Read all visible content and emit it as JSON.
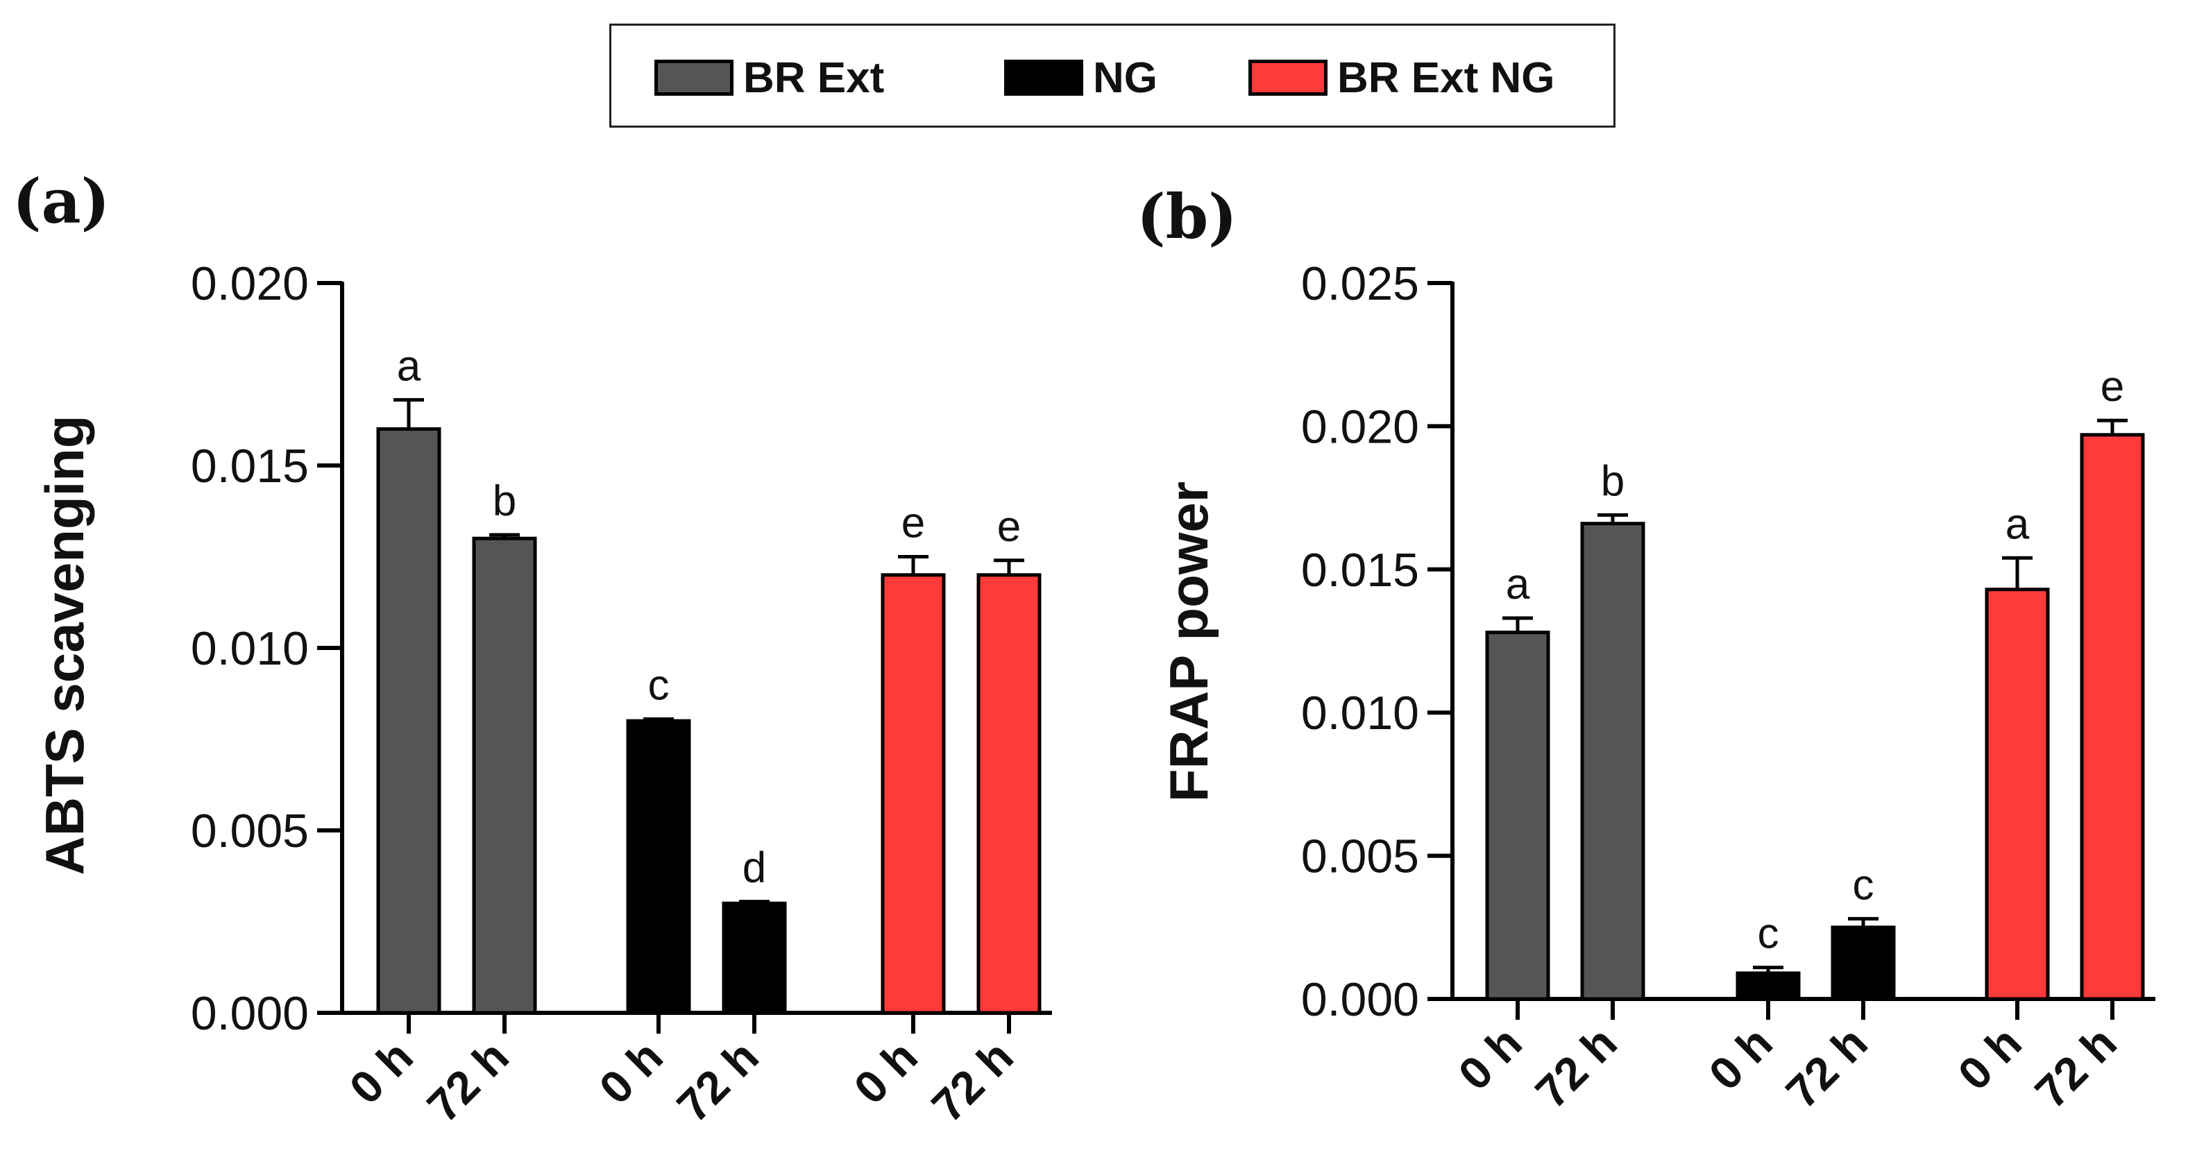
{
  "legend": {
    "items": [
      {
        "label": "BR Ext",
        "color": "#555555"
      },
      {
        "label": "NG",
        "color": "#000000"
      },
      {
        "label": "BR Ext NG",
        "color": "#ff3a3a"
      }
    ]
  },
  "panels": {
    "a": {
      "label": "(a)"
    },
    "b": {
      "label": "(b)"
    }
  },
  "chart_data": [
    {
      "type": "bar",
      "panel": "(a)",
      "ylabel": "ABTS scavenging",
      "xlabel": "",
      "ylim": [
        0,
        0.02
      ],
      "yticks": [
        "0.000",
        "0.005",
        "0.010",
        "0.015",
        "0.020"
      ],
      "categories": [
        "0 h",
        "72 h",
        "0 h",
        "72 h",
        "0 h",
        "72 h"
      ],
      "groups": [
        "BR Ext",
        "NG",
        "BR Ext NG"
      ],
      "values": [
        0.016,
        0.013,
        0.008,
        0.003,
        0.012,
        0.012
      ],
      "errors": [
        0.0008,
        0.0001,
        5e-05,
        5e-05,
        0.0005,
        0.0004
      ],
      "letters": [
        "a",
        "b",
        "c",
        "d",
        "e",
        "e"
      ],
      "colors": [
        "#555555",
        "#555555",
        "#000000",
        "#000000",
        "#ff3a3a",
        "#ff3a3a"
      ]
    },
    {
      "type": "bar",
      "panel": "(b)",
      "ylabel": "FRAP power",
      "xlabel": "",
      "ylim": [
        0,
        0.025
      ],
      "yticks": [
        "0.000",
        "0.005",
        "0.010",
        "0.015",
        "0.020",
        "0.025"
      ],
      "categories": [
        "0 h",
        "72 h",
        "0 h",
        "72 h",
        "0 h",
        "72 h"
      ],
      "groups": [
        "BR Ext",
        "NG",
        "BR Ext NG"
      ],
      "values": [
        0.0128,
        0.0166,
        0.0009,
        0.0025,
        0.0143,
        0.0197
      ],
      "errors": [
        0.0005,
        0.0003,
        0.0002,
        0.0003,
        0.0011,
        0.0005
      ],
      "letters": [
        "a",
        "b",
        "c",
        "c",
        "a",
        "e"
      ],
      "colors": [
        "#555555",
        "#555555",
        "#000000",
        "#000000",
        "#ff3a3a",
        "#ff3a3a"
      ]
    }
  ]
}
